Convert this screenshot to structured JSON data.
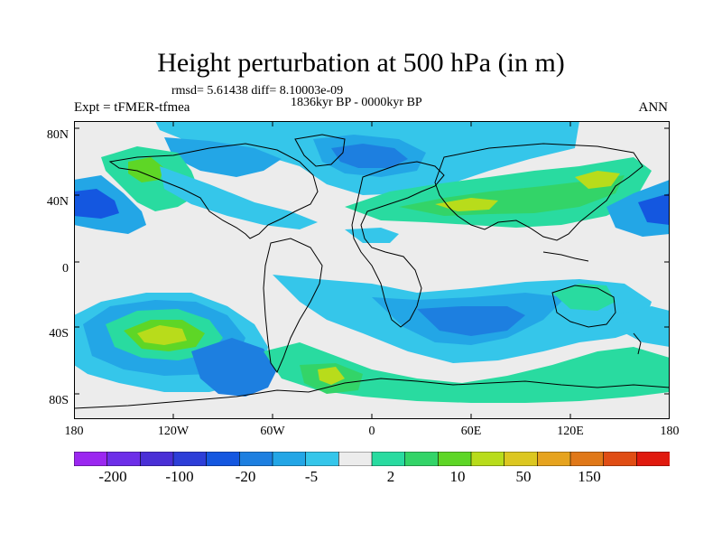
{
  "title": "Height perturbation at 500 hPa (in m)",
  "stats_line": "rmsd= 5.61438 diff= 8.10003e-09",
  "period": "1836kyr BP - 0000kyr BP",
  "experiment_label": "Expt = tFMER-tfmea",
  "season_label": "ANN",
  "y_axis_labels": [
    "80N",
    "40N",
    "0",
    "40S",
    "80S"
  ],
  "x_axis_labels": [
    "180",
    "120W",
    "60W",
    "0",
    "60E",
    "120E",
    "180"
  ],
  "colorbar": {
    "colors": [
      "#9b27f0",
      "#6d2ee8",
      "#4a2fd6",
      "#2d3ed8",
      "#1457e0",
      "#1d7fe0",
      "#23a6e6",
      "#35c6ea",
      "#ececec",
      "#29dba0",
      "#33d468",
      "#5ed626",
      "#b8dc1b",
      "#dcc720",
      "#e6a31e",
      "#e07818",
      "#e04d14",
      "#e01a0e"
    ],
    "tick_labels": [
      "-200",
      "-100",
      "-20",
      "-5",
      "2",
      "10",
      "50",
      "150"
    ]
  },
  "fill_colors": {
    "neutral": "#ececec",
    "light_blue": "#35c6ea",
    "mid_blue": "#23a6e6",
    "blue": "#1d7fe0",
    "dark_blue": "#1457e0",
    "teal": "#29dba0",
    "green": "#33d468",
    "bright_green": "#5ed626",
    "yellow_green": "#b8dc1b",
    "coast": "#000000"
  }
}
